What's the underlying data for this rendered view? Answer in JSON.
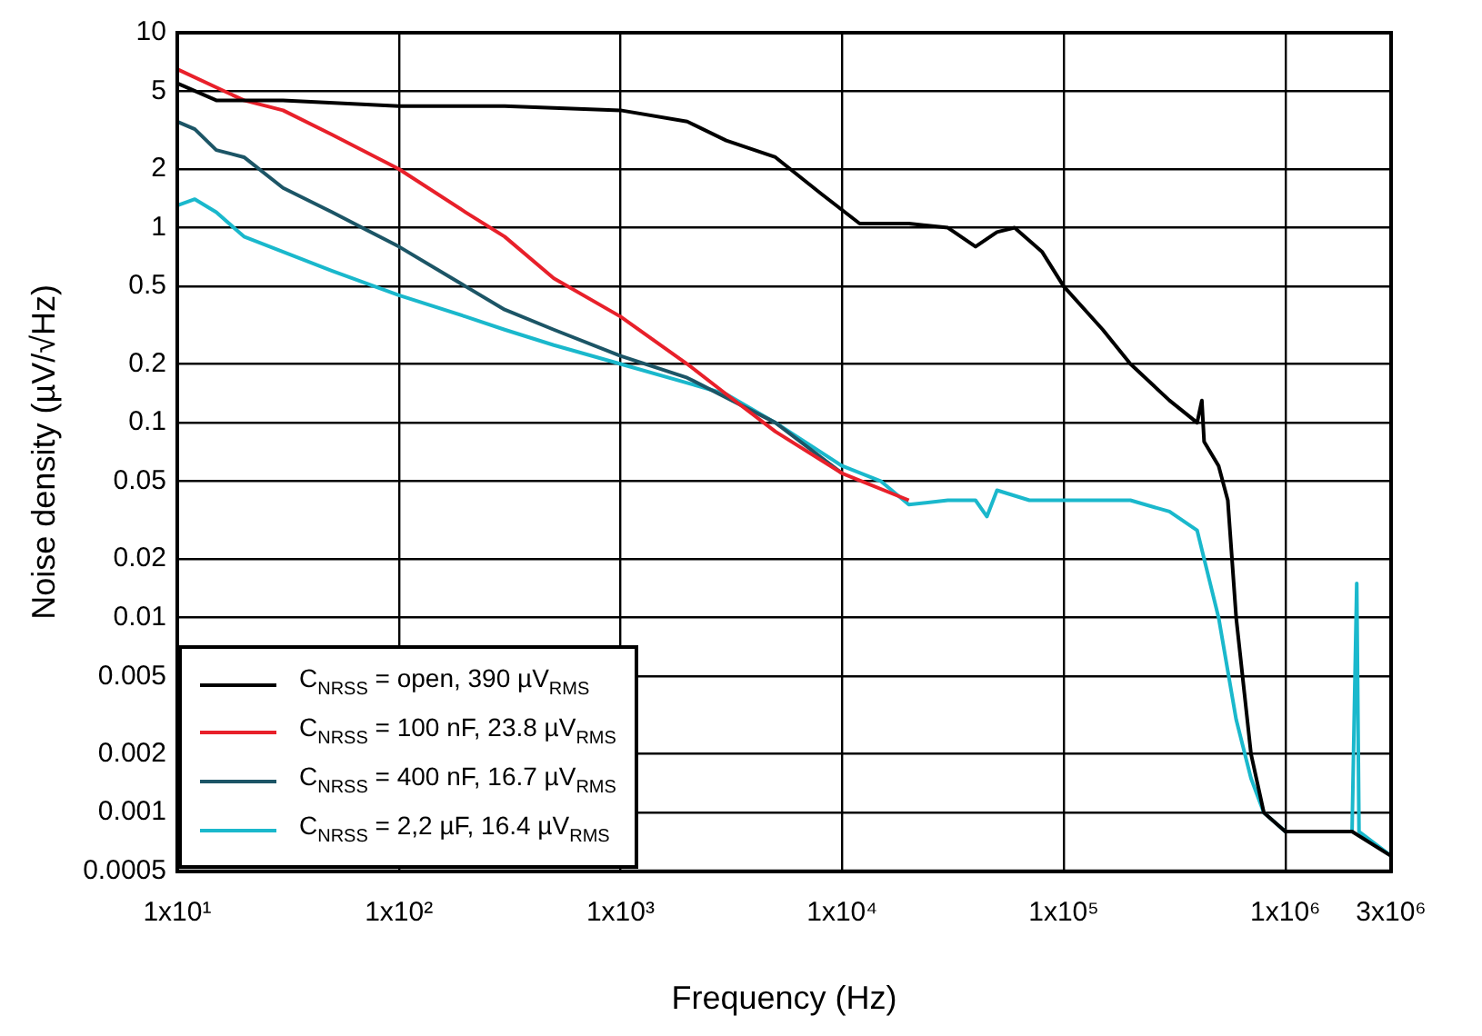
{
  "chart_data": {
    "type": "line",
    "xlabel": "Frequency (Hz)",
    "ylabel": "Noise density (µV/√Hz)",
    "log": "xy",
    "grid": true,
    "legend": "bottom left",
    "marker": "none",
    "line_style": "solid",
    "xlim": [
      10,
      3000000
    ],
    "xticks": [
      {
        "value": 10,
        "label": "1x10¹"
      },
      {
        "value": 100,
        "label": "1x10²"
      },
      {
        "value": 1000,
        "label": "1x10³"
      },
      {
        "value": 10000,
        "label": "1x10⁴"
      },
      {
        "value": 100000,
        "label": "1x10⁵"
      },
      {
        "value": 1000000,
        "label": "1x10⁶"
      },
      {
        "value": 3000000,
        "label": "3x10⁶"
      }
    ],
    "ylim": [
      0.0005,
      10
    ],
    "yticks": [
      0.0005,
      0.001,
      0.002,
      0.005,
      0.01,
      0.02,
      0.05,
      0.1,
      0.2,
      0.5,
      1,
      2,
      5,
      10
    ],
    "series": [
      {
        "name": "C$_{NRSS}$ = open, 390 µV$_{RMS}$",
        "color": "#000000",
        "x": [
          10,
          15,
          30,
          100,
          300,
          1000,
          2000,
          3000,
          5000,
          8000,
          12000,
          20000,
          30000,
          40000,
          50000,
          60000,
          80000,
          100000,
          150000,
          200000,
          300000,
          400000,
          420000,
          430000,
          500000,
          550000,
          600000,
          700000,
          800000,
          1000000,
          2000000,
          3000000
        ],
        "values": [
          5.5,
          4.5,
          4.5,
          4.2,
          4.2,
          4,
          3.5,
          2.8,
          2.3,
          1.5,
          1.05,
          1.05,
          1,
          0.8,
          0.95,
          1,
          0.75,
          0.5,
          0.3,
          0.2,
          0.13,
          0.1,
          0.13,
          0.08,
          0.06,
          0.04,
          0.01,
          0.002,
          0.001,
          0.0008,
          0.0008,
          0.0006
        ]
      },
      {
        "name": "C$_{NRSS}$ = 100 nF, 23.8 µV$_{RMS}$",
        "color": "#e8202a",
        "x": [
          10,
          20,
          30,
          50,
          100,
          200,
          300,
          500,
          1000,
          2000,
          3000,
          5000,
          10000,
          20000
        ],
        "values": [
          6.5,
          4.5,
          4,
          3,
          2,
          1.2,
          0.9,
          0.55,
          0.35,
          0.2,
          0.14,
          0.09,
          0.055,
          0.04
        ]
      },
      {
        "name": "C$_{NRSS}$ = 400 nF, 16.7 µV$_{RMS}$",
        "color": "#1c5566",
        "x": [
          10,
          12,
          15,
          20,
          30,
          50,
          100,
          200,
          300,
          500,
          1000,
          2000,
          5000,
          10000
        ],
        "values": [
          3.5,
          3.2,
          2.5,
          2.3,
          1.6,
          1.2,
          0.8,
          0.5,
          0.38,
          0.3,
          0.22,
          0.17,
          0.1,
          0.055
        ]
      },
      {
        "name": "C$_{NRSS}$ = 2,2 µF, 16.4 µV$_{RMS}$",
        "color": "#1ab8cc",
        "x": [
          10,
          12,
          15,
          20,
          50,
          100,
          200,
          300,
          500,
          1000,
          2000,
          3000,
          5000,
          10000,
          15000,
          20000,
          30000,
          40000,
          45000,
          50000,
          70000,
          100000,
          200000,
          300000,
          400000,
          500000,
          600000,
          700000,
          800000,
          1000000,
          2000000,
          2100000,
          2150000,
          3000000
        ],
        "values": [
          1.3,
          1.4,
          1.2,
          0.9,
          0.6,
          0.45,
          0.35,
          0.3,
          0.25,
          0.2,
          0.16,
          0.14,
          0.1,
          0.06,
          0.05,
          0.038,
          0.04,
          0.04,
          0.033,
          0.045,
          0.04,
          0.04,
          0.04,
          0.035,
          0.028,
          0.01,
          0.003,
          0.0015,
          0.001,
          0.0008,
          0.0008,
          0.015,
          0.0008,
          0.0006
        ]
      }
    ]
  }
}
